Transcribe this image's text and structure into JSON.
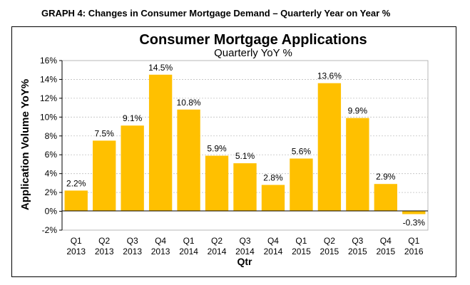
{
  "caption": "GRAPH 4: Changes in Consumer Mortgage Demand – Quarterly Year on Year %",
  "chart_data": {
    "type": "bar",
    "title": "Consumer Mortgage Applications",
    "subtitle": "Quarterly  YoY  %",
    "xlabel": "Qtr",
    "ylabel": "Application Volume YoY%",
    "categories": [
      [
        "Q1",
        "2013"
      ],
      [
        "Q2",
        "2013"
      ],
      [
        "Q3",
        "2013"
      ],
      [
        "Q4",
        "2013"
      ],
      [
        "Q1",
        "2014"
      ],
      [
        "Q2",
        "2014"
      ],
      [
        "Q3",
        "2014"
      ],
      [
        "Q4",
        "2014"
      ],
      [
        "Q1",
        "2015"
      ],
      [
        "Q2",
        "2015"
      ],
      [
        "Q3",
        "2015"
      ],
      [
        "Q4",
        "2015"
      ],
      [
        "Q1",
        "2016"
      ]
    ],
    "values": [
      2.2,
      7.5,
      9.1,
      14.5,
      10.8,
      5.9,
      5.1,
      2.8,
      5.6,
      13.6,
      9.9,
      2.9,
      -0.3
    ],
    "data_labels": [
      "2.2%",
      "7.5%",
      "9.1%",
      "14.5%",
      "10.8%",
      "5.9%",
      "5.1%",
      "2.8%",
      "5.6%",
      "13.6%",
      "9.9%",
      "2.9%",
      "-0.3%"
    ],
    "ylim": [
      -2,
      16
    ],
    "yticks": [
      -2,
      0,
      2,
      4,
      6,
      8,
      10,
      12,
      14,
      16
    ],
    "ytick_labels": [
      "-2%",
      "0%",
      "2%",
      "4%",
      "6%",
      "8%",
      "10%",
      "12%",
      "14%",
      "16%"
    ],
    "bar_color": "#FFC000",
    "grid": true,
    "legend": "none"
  }
}
